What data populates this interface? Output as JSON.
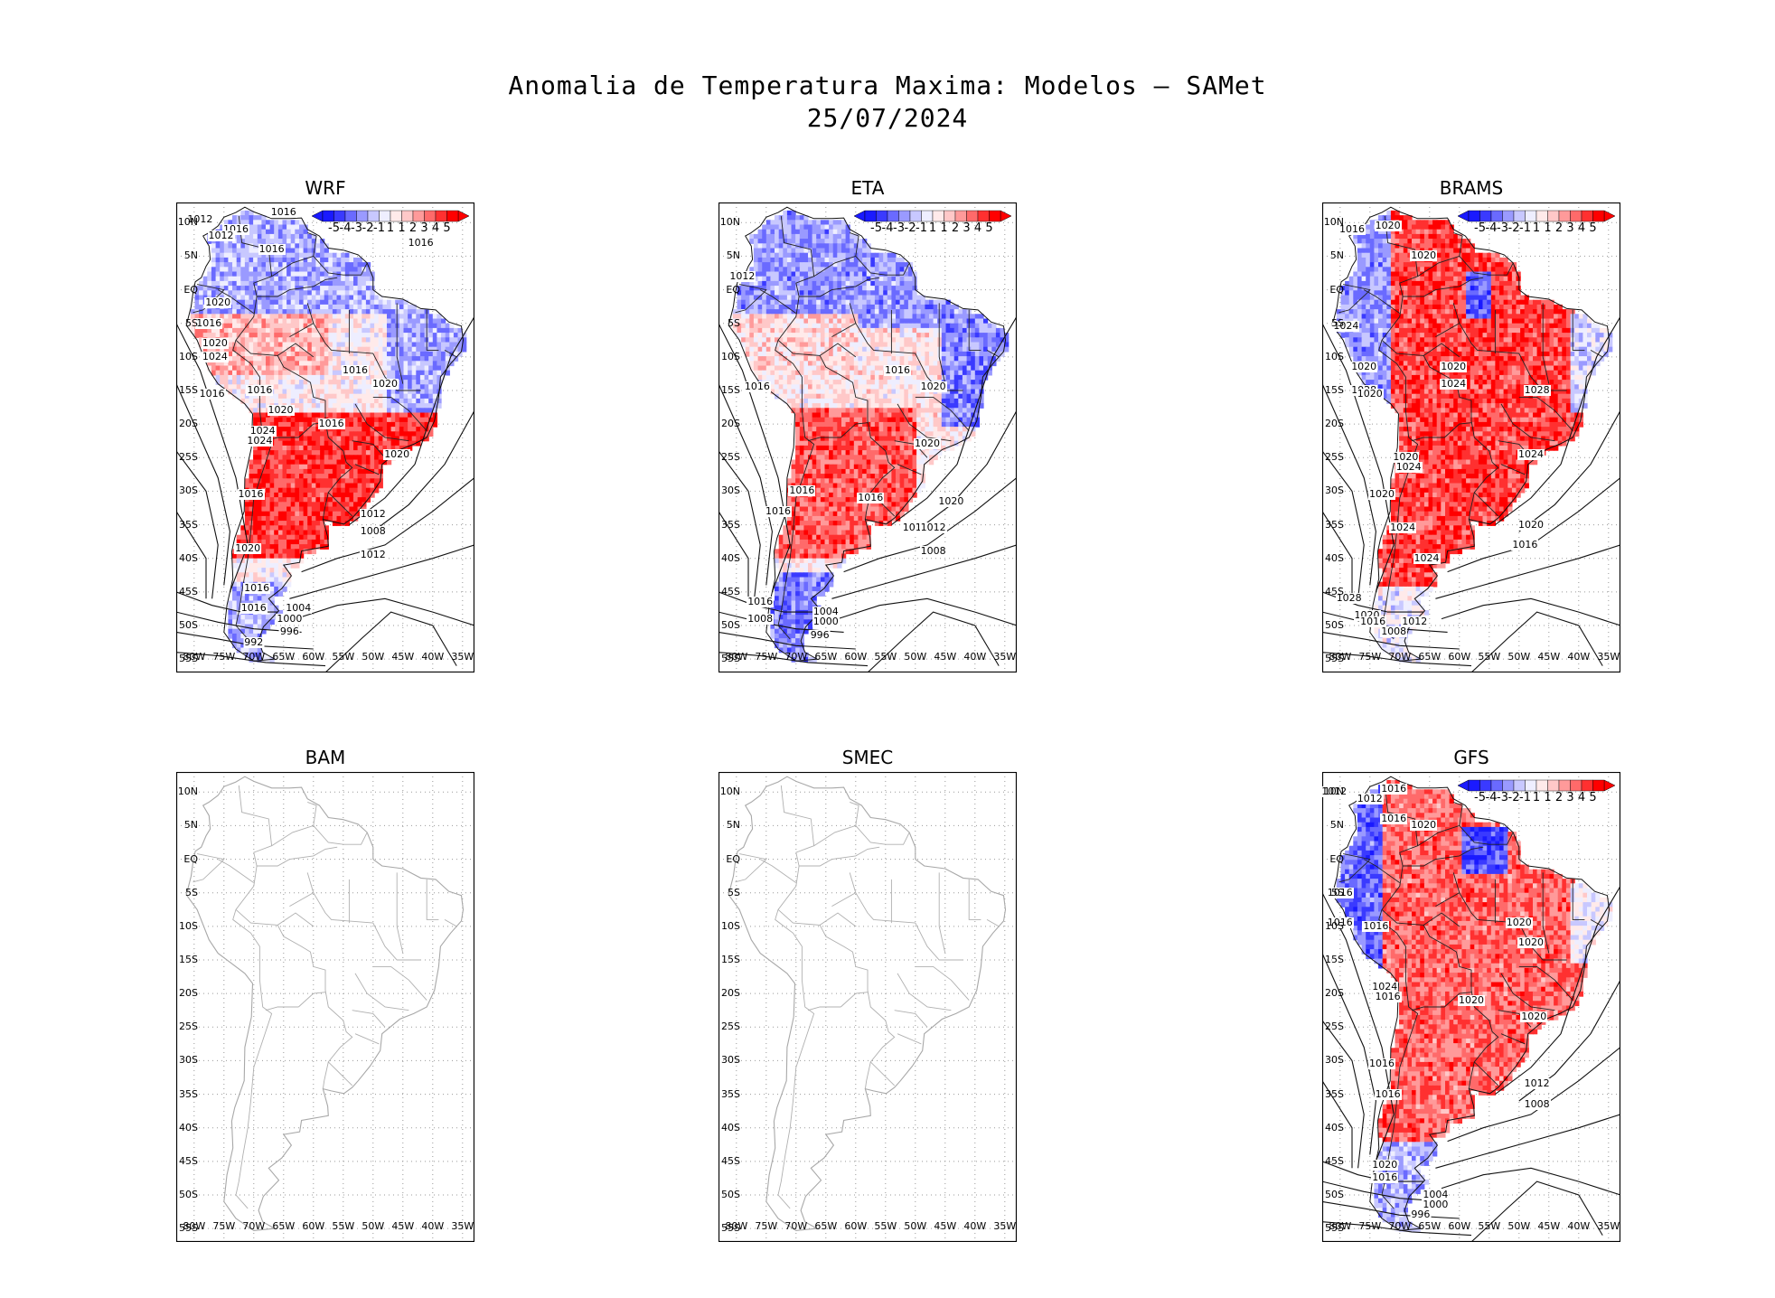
{
  "figure": {
    "title_line1": "Anomalia de Temperatura Maxima: Modelos — SAMet",
    "title_line2": "25/07/2024"
  },
  "axes": {
    "lat_labels": [
      "10N",
      "5N",
      "EQ",
      "5S",
      "10S",
      "15S",
      "20S",
      "25S",
      "30S",
      "35S",
      "40S",
      "45S",
      "50S",
      "55S"
    ],
    "lon_labels": [
      "80W",
      "75W",
      "70W",
      "65W",
      "60W",
      "55W",
      "50W",
      "45W",
      "40W",
      "35W"
    ]
  },
  "colorbar": {
    "labels": [
      "-5",
      "-4",
      "-3",
      "-2",
      "-1",
      "1",
      "1",
      "2",
      "3",
      "4",
      "5"
    ],
    "colors": [
      "#1a1aff",
      "#3a3aff",
      "#6a6aff",
      "#9a9aff",
      "#c8c8ff",
      "#eeeeff",
      "#ffeaea",
      "#ffc8c8",
      "#ff9a9a",
      "#ff6a6a",
      "#ff3030",
      "#ff0000"
    ]
  },
  "panels": [
    {
      "id": "wrf",
      "name": "WRF",
      "has_data": true,
      "contours": [
        "1012",
        "1016",
        "1012",
        "1016",
        "1016",
        "1016",
        "1020",
        "1016",
        "1020",
        "1024",
        "1016",
        "1016",
        "1016",
        "1020",
        "1024",
        "1024",
        "1016",
        "1020",
        "1020",
        "1016",
        "1020",
        "1012",
        "1016",
        "1008",
        "1016",
        "1012",
        "1004",
        "1000",
        "996",
        "992"
      ]
    },
    {
      "id": "eta",
      "name": "ETA",
      "has_data": true,
      "contours": [
        "1012",
        "1016",
        "1016",
        "1020",
        "1016",
        "1016",
        "1020",
        "1016",
        "1020",
        "1016",
        "1012",
        "1008",
        "1016",
        "1004",
        "1008",
        "1000",
        "996"
      ]
    },
    {
      "id": "brams",
      "name": "BRAMS",
      "has_data": true,
      "contours": [
        "1016",
        "1020",
        "1020",
        "1024",
        "1020",
        "1020",
        "1028",
        "1020",
        "1024",
        "1020",
        "1024",
        "1028",
        "1024",
        "1020",
        "1024",
        "1024",
        "1016",
        "1028",
        "1020",
        "1016",
        "1012",
        "1008",
        "1020"
      ]
    },
    {
      "id": "bam",
      "name": "BAM",
      "has_data": false,
      "contours": []
    },
    {
      "id": "smec",
      "name": "SMEC",
      "has_data": false,
      "contours": []
    },
    {
      "id": "gfs",
      "name": "GFS",
      "has_data": true,
      "contours": [
        "1012",
        "1012",
        "1016",
        "1016",
        "1020",
        "1016",
        "1016",
        "1016",
        "1020",
        "1020",
        "1024",
        "1016",
        "1020",
        "1020",
        "1016",
        "1016",
        "1012",
        "1008",
        "1020",
        "1016",
        "1004",
        "1000",
        "996"
      ]
    }
  ]
}
